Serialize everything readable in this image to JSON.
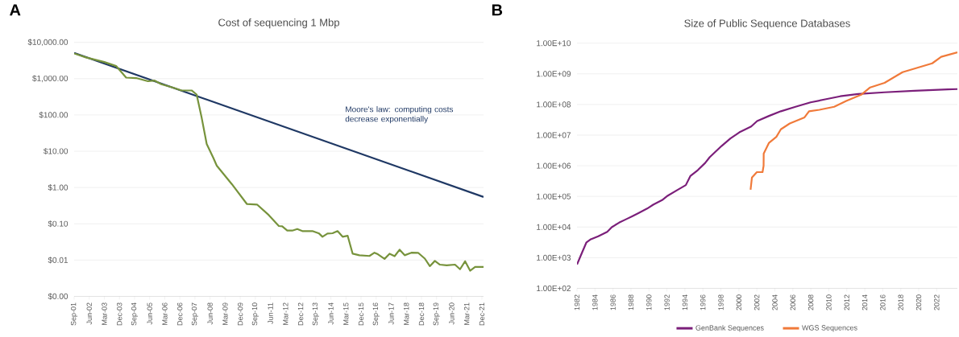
{
  "chart_data": [
    {
      "type": "line",
      "title": "Cost of sequencing 1 Mbp",
      "annotations": [
        "A",
        "Moore's law: computing costs decrease exponentially"
      ],
      "log": "y",
      "grid": "y",
      "xlim": [
        "2001-09",
        "2022-01"
      ],
      "ylim": [
        0.001,
        10000
      ],
      "xticks": [
        {
          "value": "2001-09",
          "label": "Sep-01"
        },
        {
          "value": "2002-06",
          "label": "Jun-02"
        },
        {
          "value": "2003-03",
          "label": "Mar-03"
        },
        {
          "value": "2003-12",
          "label": "Dec-03"
        },
        {
          "value": "2004-09",
          "label": "Sep-04"
        },
        {
          "value": "2005-06",
          "label": "Jun-05"
        },
        {
          "value": "2006-03",
          "label": "Mar-06"
        },
        {
          "value": "2006-12",
          "label": "Dec-06"
        },
        {
          "value": "2007-09",
          "label": "Sep-07"
        },
        {
          "value": "2008-06",
          "label": "Jun-08"
        },
        {
          "value": "2009-03",
          "label": "Mar-09"
        },
        {
          "value": "2009-12",
          "label": "Dec-09"
        },
        {
          "value": "2010-09",
          "label": "Sep-10"
        },
        {
          "value": "2011-06",
          "label": "Jun-11"
        },
        {
          "value": "2012-03",
          "label": "Mar-12"
        },
        {
          "value": "2012-12",
          "label": "Dec-12"
        },
        {
          "value": "2013-09",
          "label": "Sep-13"
        },
        {
          "value": "2014-06",
          "label": "Jun-14"
        },
        {
          "value": "2015-03",
          "label": "Mar-15"
        },
        {
          "value": "2015-12",
          "label": "Dec-15"
        },
        {
          "value": "2016-09",
          "label": "Sep-16"
        },
        {
          "value": "2017-06",
          "label": "Jun-17"
        },
        {
          "value": "2018-03",
          "label": "Mar-18"
        },
        {
          "value": "2018-12",
          "label": "Dec-18"
        },
        {
          "value": "2019-09",
          "label": "Sep-19"
        },
        {
          "value": "2020-06",
          "label": "Jun-20"
        },
        {
          "value": "2021-03",
          "label": "Mar-21"
        },
        {
          "value": "2021-12",
          "label": "Dec-21"
        }
      ],
      "yticks": [
        {
          "value": 0.001,
          "label": "$0.00"
        },
        {
          "value": 0.01,
          "label": "$0.01"
        },
        {
          "value": 0.1,
          "label": "$0.10"
        },
        {
          "value": 1,
          "label": "$1.00"
        },
        {
          "value": 10,
          "label": "$10.00"
        },
        {
          "value": 100,
          "label": "$100.00"
        },
        {
          "value": 1000,
          "label": "$1,000.00"
        },
        {
          "value": 10000,
          "label": "$10,000.00"
        }
      ],
      "series": [
        {
          "color": "#1f3864",
          "x": [
            "2001-09",
            "2022-01"
          ],
          "values": [
            5100,
            0.55
          ]
        },
        {
          "color": "#77933c",
          "x": [
            "2001-09",
            "2002-04",
            "2003-03",
            "2003-10",
            "2004-04",
            "2004-10",
            "2005-05",
            "2005-09",
            "2006-01",
            "2006-08",
            "2007-01",
            "2007-07",
            "2007-10",
            "2008-01",
            "2008-04",
            "2008-08",
            "2008-10",
            "2009-07",
            "2010-04",
            "2010-10",
            "2011-05",
            "2011-11",
            "2012-01",
            "2012-04",
            "2012-07",
            "2012-10",
            "2013-01",
            "2013-07",
            "2013-11",
            "2014-01",
            "2014-04",
            "2014-07",
            "2014-10",
            "2015-01",
            "2015-04",
            "2015-07",
            "2015-11",
            "2016-05",
            "2016-08",
            "2016-10",
            "2017-02",
            "2017-05",
            "2017-08",
            "2017-11",
            "2018-02",
            "2018-06",
            "2018-10",
            "2019-02",
            "2019-05",
            "2019-08",
            "2019-11",
            "2020-03",
            "2020-08",
            "2020-11",
            "2021-02",
            "2021-05",
            "2021-08",
            "2022-01"
          ],
          "values": [
            4960,
            3850,
            2870,
            2230,
            1070,
            1040,
            850,
            885,
            700,
            565,
            473,
            473,
            366,
            84,
            15.9,
            6.5,
            4.0,
            1.24,
            0.35,
            0.34,
            0.174,
            0.087,
            0.085,
            0.065,
            0.065,
            0.072,
            0.063,
            0.063,
            0.054,
            0.044,
            0.054,
            0.055,
            0.063,
            0.044,
            0.047,
            0.015,
            0.0136,
            0.013,
            0.016,
            0.0145,
            0.0108,
            0.015,
            0.0128,
            0.0194,
            0.0136,
            0.016,
            0.0159,
            0.011,
            0.0068,
            0.0095,
            0.0075,
            0.0072,
            0.0075,
            0.0056,
            0.0093,
            0.0051,
            0.0065,
            0.0065
          ]
        }
      ]
    },
    {
      "type": "line",
      "title": "Size of Public Sequence Databases",
      "annotations": [
        "B"
      ],
      "log": "y",
      "grid": "y",
      "legend": "bottom",
      "xlim": [
        1982,
        2024.3
      ],
      "ylim": [
        100,
        10000000000
      ],
      "xticks": [
        1982,
        1984,
        1986,
        1988,
        1990,
        1992,
        1994,
        1996,
        1998,
        2000,
        2002,
        2004,
        2006,
        2008,
        2010,
        2012,
        2014,
        2016,
        2018,
        2020,
        2022
      ],
      "yticks": [
        {
          "value": 100,
          "label": "1.00E+02"
        },
        {
          "value": 1000,
          "label": "1.00E+03"
        },
        {
          "value": 10000,
          "label": "1.00E+04"
        },
        {
          "value": 100000,
          "label": "1.00E+05"
        },
        {
          "value": 1000000,
          "label": "1.00E+06"
        },
        {
          "value": 10000000,
          "label": "1.00E+07"
        },
        {
          "value": 100000000,
          "label": "1.00E+08"
        },
        {
          "value": 1000000000,
          "label": "1.00E+09"
        },
        {
          "value": 10000000000,
          "label": "1.00E+10"
        }
      ],
      "series": [
        {
          "name": "GenBank Sequences",
          "color": "#7b1f7a",
          "x": [
            1982.0,
            1982.55,
            1983.05,
            1983.54,
            1984.37,
            1985.36,
            1985.86,
            1986.68,
            1987.5,
            1988.17,
            1988.83,
            1989.8,
            1990.47,
            1991.46,
            1992.1,
            1993.1,
            1994.1,
            1994.6,
            1995.43,
            1996.25,
            1996.75,
            1998.07,
            1999.06,
            2000.05,
            2001.37,
            2002.03,
            2003.35,
            2004.67,
            2006.3,
            2007.97,
            2009.6,
            2011.27,
            2013.26,
            2016.2,
            2019.5,
            2024.3
          ],
          "values": [
            600,
            1450,
            3170,
            4000,
            5000,
            7000,
            9900,
            13900,
            18200,
            22800,
            28600,
            40000,
            53600,
            75500,
            106000,
            158000,
            234000,
            460000,
            720000,
            1230000,
            1900000,
            4400000,
            7800000,
            12300000,
            19200000,
            28800000,
            42300000,
            60000000,
            84000000,
            117000000,
            147000000,
            185000000,
            220000000,
            250000000,
            278000000,
            320000000
          ]
        },
        {
          "name": "WGS Sequences",
          "color": "#f07a3a",
          "x": [
            2001.3,
            2001.45,
            2002.0,
            2002.63,
            2002.75,
            2002.76,
            2003.35,
            2004.17,
            2004.67,
            2005.66,
            2007.3,
            2007.8,
            2008.96,
            2010.6,
            2011.94,
            2013.6,
            2014.6,
            2016.2,
            2018.2,
            2019.85,
            2021.5,
            2022.5,
            2024.3
          ],
          "values": [
            165000,
            410000,
            620000,
            620000,
            1000000,
            2500000,
            5600000,
            8800000,
            15500000,
            24000000,
            38000000,
            60000000,
            67000000,
            84000000,
            130000000,
            207000000,
            360000000,
            510000000,
            1130000000,
            1580000000,
            2200000000,
            3600000000,
            5000000000
          ]
        }
      ]
    }
  ]
}
